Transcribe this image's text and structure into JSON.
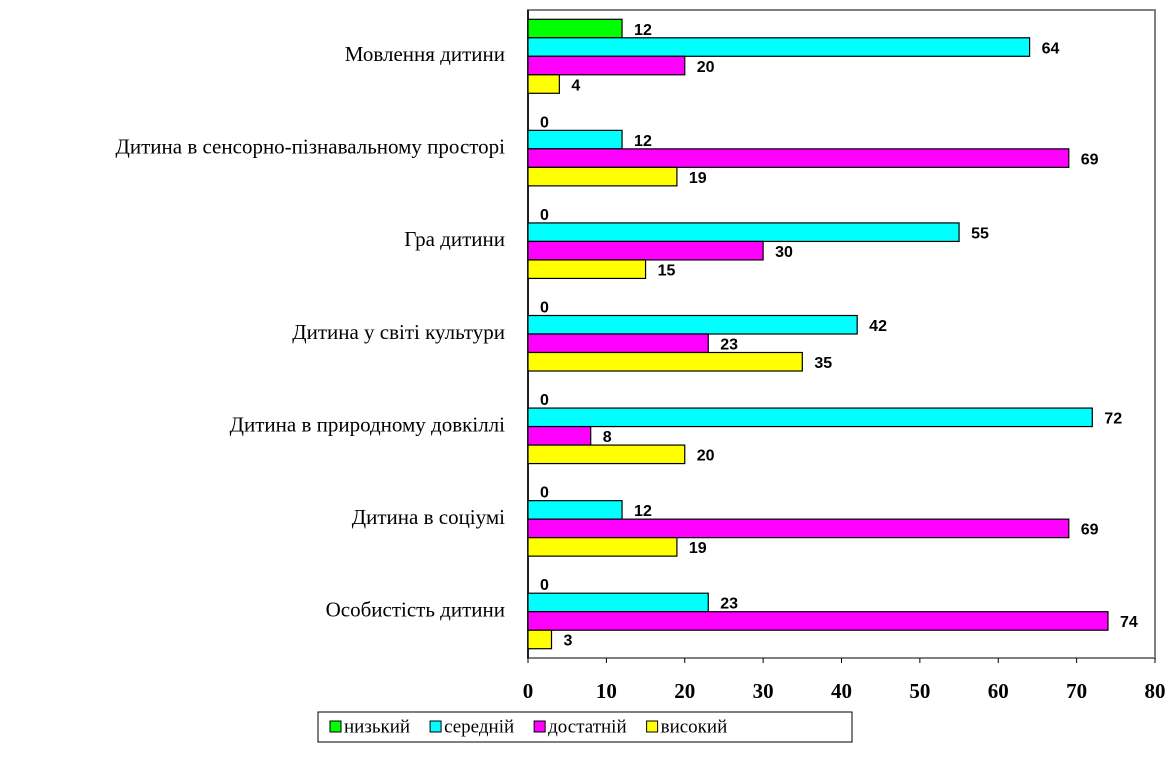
{
  "chart_data": {
    "type": "barh",
    "categories": [
      "Мовлення дитини",
      "Дитина в сенсорно-пізнавальному просторі",
      "Гра дитини",
      "Дитина у світі культури",
      "Дитина в природному довкіллі",
      "Дитина в соціумі",
      "Особистість дитини"
    ],
    "series": [
      {
        "name": "низький",
        "color": "#00ff00",
        "values": [
          12,
          0,
          0,
          0,
          0,
          0,
          0
        ]
      },
      {
        "name": "середній",
        "color": "#00ffff",
        "values": [
          64,
          12,
          55,
          42,
          72,
          12,
          23
        ]
      },
      {
        "name": "достатній",
        "color": "#ff00ff",
        "values": [
          20,
          69,
          30,
          23,
          8,
          69,
          74
        ]
      },
      {
        "name": "високий",
        "color": "#ffff00",
        "values": [
          4,
          19,
          15,
          35,
          20,
          19,
          3
        ]
      }
    ],
    "xlim": [
      0,
      80
    ],
    "xticks": [
      0,
      10,
      20,
      30,
      40,
      50,
      60,
      70,
      80
    ],
    "legend": "bottom"
  }
}
